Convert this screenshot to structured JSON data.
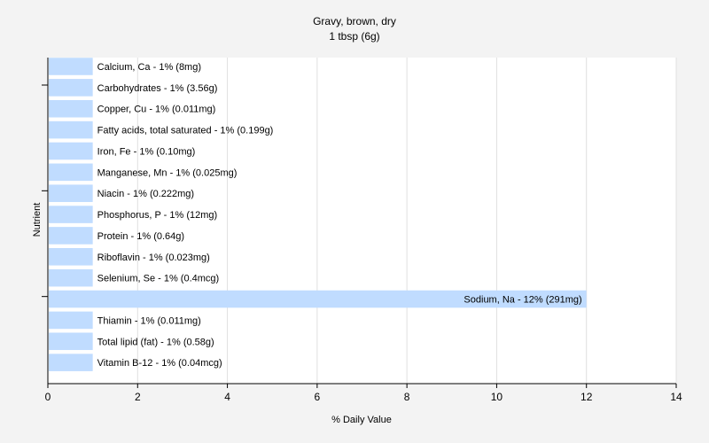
{
  "chart_data": {
    "type": "bar",
    "orientation": "horizontal",
    "title": "Gravy, brown, dry",
    "subtitle": "1 tbsp (6g)",
    "xlabel": "% Daily Value",
    "ylabel": "Nutrient",
    "xlim": [
      0,
      14
    ],
    "xticks": [
      0,
      2,
      4,
      6,
      8,
      10,
      12,
      14
    ],
    "grid": true,
    "bar_color": "#c0dcff",
    "grid_color": "#e0e0e0",
    "categories": [
      "Calcium, Ca",
      "Carbohydrates",
      "Copper, Cu",
      "Fatty acids, total saturated",
      "Iron, Fe",
      "Manganese, Mn",
      "Niacin",
      "Phosphorus, P",
      "Protein",
      "Riboflavin",
      "Selenium, Se",
      "Sodium, Na",
      "Thiamin",
      "Total lipid (fat)",
      "Vitamin B-12"
    ],
    "values": [
      1,
      1,
      1,
      1,
      1,
      1,
      1,
      1,
      1,
      1,
      1,
      12,
      1,
      1,
      1
    ],
    "bar_labels": [
      "Calcium, Ca - 1% (8mg)",
      "Carbohydrates - 1% (3.56g)",
      "Copper, Cu - 1% (0.011mg)",
      "Fatty acids, total saturated - 1% (0.199g)",
      "Iron, Fe - 1% (0.10mg)",
      "Manganese, Mn - 1% (0.025mg)",
      "Niacin - 1% (0.222mg)",
      "Phosphorus, P - 1% (12mg)",
      "Protein - 1% (0.64g)",
      "Riboflavin - 1% (0.023mg)",
      "Selenium, Se - 1% (0.4mcg)",
      "Sodium, Na - 12% (291mg)",
      "Thiamin - 1% (0.011mg)",
      "Total lipid (fat) - 1% (0.58g)",
      "Vitamin B-12 - 1% (0.04mcg)"
    ]
  }
}
